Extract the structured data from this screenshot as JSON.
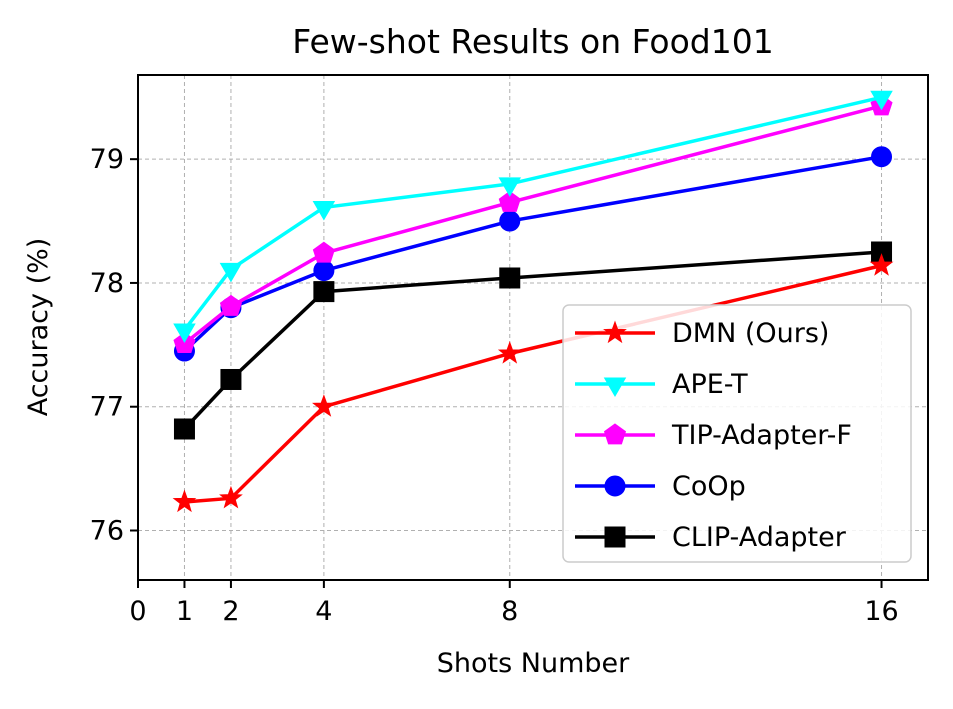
{
  "chart_data": {
    "type": "line",
    "title": "Few-shot Results on Food101",
    "xlabel": "Shots Number",
    "ylabel": "Accuracy (%)",
    "x": [
      1,
      2,
      4,
      8,
      16
    ],
    "xticks": [
      0,
      1,
      2,
      4,
      8,
      16
    ],
    "yticks": [
      76,
      77,
      78,
      79
    ],
    "xlim": [
      0,
      17
    ],
    "ylim": [
      75.6,
      79.68
    ],
    "grid": true,
    "legend_position": "lower-right",
    "series": [
      {
        "name": "DMN (Ours)",
        "color": "#ff0000",
        "marker": "star",
        "values": [
          76.23,
          76.26,
          77.0,
          77.43,
          78.14
        ]
      },
      {
        "name": "APE-T",
        "color": "#00ffff",
        "marker": "triangle-down",
        "values": [
          77.62,
          78.11,
          78.61,
          78.8,
          79.5
        ]
      },
      {
        "name": "TIP-Adapter-F",
        "color": "#ff00ff",
        "marker": "pentagon",
        "values": [
          77.51,
          77.81,
          78.24,
          78.65,
          79.43
        ]
      },
      {
        "name": "CoOp",
        "color": "#0000ff",
        "marker": "circle",
        "values": [
          77.45,
          77.8,
          78.1,
          78.5,
          79.02
        ]
      },
      {
        "name": "CLIP-Adapter",
        "color": "#000000",
        "marker": "square",
        "values": [
          76.82,
          77.22,
          77.93,
          78.04,
          78.25
        ]
      }
    ]
  }
}
